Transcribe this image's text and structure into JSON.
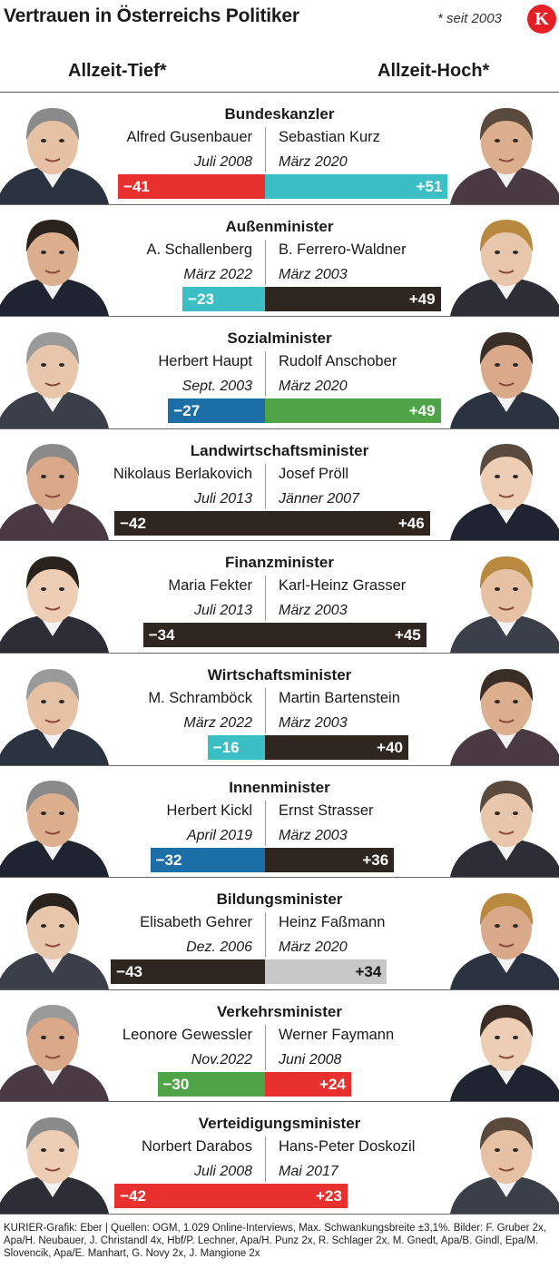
{
  "header": {
    "title": "Vertrauen in Österreichs Politiker",
    "footnote": "* seit 2003",
    "logo_letter": "K",
    "low_label": "Allzeit-Tief*",
    "high_label": "Allzeit-Hoch*"
  },
  "colors": {
    "red": "#e8312f",
    "turquoise": "#3bbfc4",
    "dark_brown": "#2f261f",
    "blue": "#1c6ea7",
    "green": "#4fa447",
    "grey": "#c7c7c7",
    "logo_red": "#e41f26"
  },
  "chart_data": {
    "type": "bar",
    "orientation": "horizontal-diverging",
    "rows": [
      {
        "office": "Bundeskanzler",
        "low_name": "Alfred Gusenbauer",
        "low_date": "Juli 2008",
        "low_value": -41,
        "low_label": "−41",
        "low_color": "red",
        "high_name": "Sebastian Kurz",
        "high_date": "März 2020",
        "high_value": 51,
        "high_label": "+51",
        "high_color": "turquoise"
      },
      {
        "office": "Außenminister",
        "low_name": "A. Schallenberg",
        "low_date": "März 2022",
        "low_value": -23,
        "low_label": "−23",
        "low_color": "turquoise",
        "high_name": "B. Ferrero-Waldner",
        "high_date": "März 2003",
        "high_value": 49,
        "high_label": "+49",
        "high_color": "dark_brown"
      },
      {
        "office": "Sozialminister",
        "low_name": "Herbert Haupt",
        "low_date": "Sept. 2003",
        "low_value": -27,
        "low_label": "−27",
        "low_color": "blue",
        "high_name": "Rudolf Anschober",
        "high_date": "März 2020",
        "high_value": 49,
        "high_label": "+49",
        "high_color": "green"
      },
      {
        "office": "Landwirtschaftsminister",
        "low_name": "Nikolaus Berlakovich",
        "low_date": "Juli 2013",
        "low_value": -42,
        "low_label": "−42",
        "low_color": "dark_brown",
        "high_name": "Josef Pröll",
        "high_date": "Jänner 2007",
        "high_value": 46,
        "high_label": "+46",
        "high_color": "dark_brown"
      },
      {
        "office": "Finanzminister",
        "low_name": "Maria Fekter",
        "low_date": "Juli 2013",
        "low_value": -34,
        "low_label": "−34",
        "low_color": "dark_brown",
        "high_name": "Karl-Heinz Grasser",
        "high_date": "März 2003",
        "high_value": 45,
        "high_label": "+45",
        "high_color": "dark_brown"
      },
      {
        "office": "Wirtschaftsminister",
        "low_name": "M. Schramböck",
        "low_date": "März 2022",
        "low_value": -16,
        "low_label": "−16",
        "low_color": "turquoise",
        "high_name": "Martin Bartenstein",
        "high_date": "März 2003",
        "high_value": 40,
        "high_label": "+40",
        "high_color": "dark_brown"
      },
      {
        "office": "Innenminister",
        "low_name": "Herbert Kickl",
        "low_date": "April 2019",
        "low_value": -32,
        "low_label": "−32",
        "low_color": "blue",
        "high_name": "Ernst Strasser",
        "high_date": "März 2003",
        "high_value": 36,
        "high_label": "+36",
        "high_color": "dark_brown"
      },
      {
        "office": "Bildungsminister",
        "low_name": "Elisabeth Gehrer",
        "low_date": "Dez. 2006",
        "low_value": -43,
        "low_label": "−43",
        "low_color": "dark_brown",
        "high_name": "Heinz Faßmann",
        "high_date": "März 2020",
        "high_value": 34,
        "high_label": "+34",
        "high_color": "grey"
      },
      {
        "office": "Verkehrsminister",
        "low_name": "Leonore Gewessler",
        "low_date": "Nov.2022",
        "low_value": -30,
        "low_label": "−30",
        "low_color": "green",
        "high_name": "Werner Faymann",
        "high_date": "Juni 2008",
        "high_value": 24,
        "high_label": "+24",
        "high_color": "red"
      },
      {
        "office": "Verteidigungsminister",
        "low_name": "Norbert Darabos",
        "low_date": "Juli 2008",
        "low_value": -42,
        "low_label": "−42",
        "low_color": "red",
        "high_name": "Hans-Peter Doskozil",
        "high_date": "Mai 2017",
        "high_value": 23,
        "high_label": "+23",
        "high_color": "red"
      }
    ]
  },
  "credits": "KURIER-Grafik: Eber | Quellen: OGM, 1.029 Online-Interviews, Max. Schwankungsbreite ±3,1%. Bilder: F. Gruber 2x, Apa/H. Neubauer, J. Christandl 4x, Hbf/P. Lechner, Apa/H. Punz 2x, R. Schlager 2x, M. Gnedt, Apa/B. Gindl, Epa/M. Slovencik, Apa/E. Manhart, G. Novy 2x, J. Mangione 2x"
}
